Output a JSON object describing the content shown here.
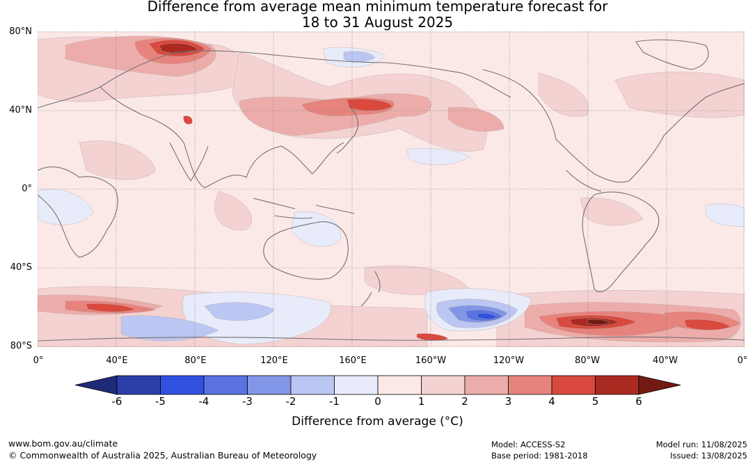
{
  "title": {
    "line1": "Difference from average mean minimum temperature forecast for",
    "line2": "18 to 31 August 2025"
  },
  "map": {
    "lat_labels": [
      "80°N",
      "40°N",
      "0°",
      "40°S",
      "80°S"
    ],
    "lon_labels": [
      "0°",
      "40°E",
      "80°E",
      "120°E",
      "160°E",
      "160°W",
      "120°W",
      "80°W",
      "40°W",
      "0°"
    ]
  },
  "colorbar": {
    "ticks": [
      "-6",
      "-5",
      "-4",
      "-3",
      "-2",
      "-1",
      "0",
      "1",
      "2",
      "3",
      "4",
      "5",
      "6"
    ],
    "colors": {
      "lt_-6": "#1f2a78",
      "-6_-5": "#2b3eaa",
      "-5_-4": "#3050e0",
      "-4_-3": "#5a73e0",
      "-3_-2": "#8296e8",
      "-2_-1": "#bcc6f2",
      "-1_0": "#e8ecfa",
      "0_1": "#fbe9e8",
      "1_2": "#f4d2d1",
      "2_3": "#ecadaa",
      "3_4": "#e6837c",
      "4_5": "#d9493e",
      "5_6": "#aa2a22",
      "gt_6": "#741a14"
    },
    "label": "Difference from average (°C)"
  },
  "footer": {
    "website": "www.bom.gov.au/climate",
    "copyright": "© Commonwealth of Australia 2025, Australian Bureau of Meteorology",
    "model": "Model: ACCESS-S2",
    "base_period": "Base period: 1981-2018",
    "model_run": "Model run: 11/08/2025",
    "issued": "Issued: 13/08/2025"
  }
}
